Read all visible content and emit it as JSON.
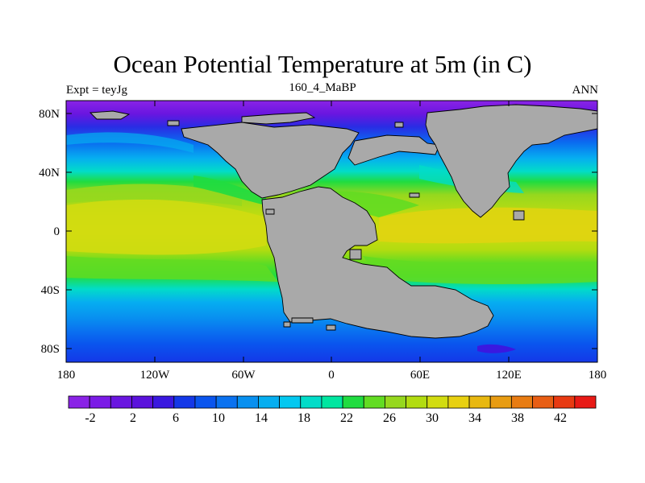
{
  "map": {
    "title": "Ocean Potential Temperature at 5m (in C)",
    "subtitle": "160_4_MaBP",
    "left_label": "Expt = teyJg",
    "right_label": "ANN",
    "lat_ticks": [
      "80N",
      "40N",
      "0",
      "40S",
      "80S"
    ],
    "lon_ticks": [
      "180",
      "120W",
      "60W",
      "0",
      "60E",
      "120E",
      "180"
    ],
    "colorbar": {
      "labels": [
        "-2",
        "2",
        "6",
        "10",
        "14",
        "18",
        "22",
        "26",
        "30",
        "34",
        "38",
        "42"
      ],
      "colors": [
        "#8a23e6",
        "#7b1be6",
        "#6a16e0",
        "#5b12dc",
        "#3a18e0",
        "#1438e8",
        "#0a55ee",
        "#0a72f0",
        "#0890f0",
        "#06aef0",
        "#03c8f0",
        "#02dcc8",
        "#00e6a0",
        "#20dc40",
        "#62dc22",
        "#96d81e",
        "#b2dc10",
        "#d2dc10",
        "#e8d010",
        "#e8b810",
        "#e89c12",
        "#e87c12",
        "#e85e14",
        "#e83a12",
        "#e81a16"
      ]
    }
  }
}
